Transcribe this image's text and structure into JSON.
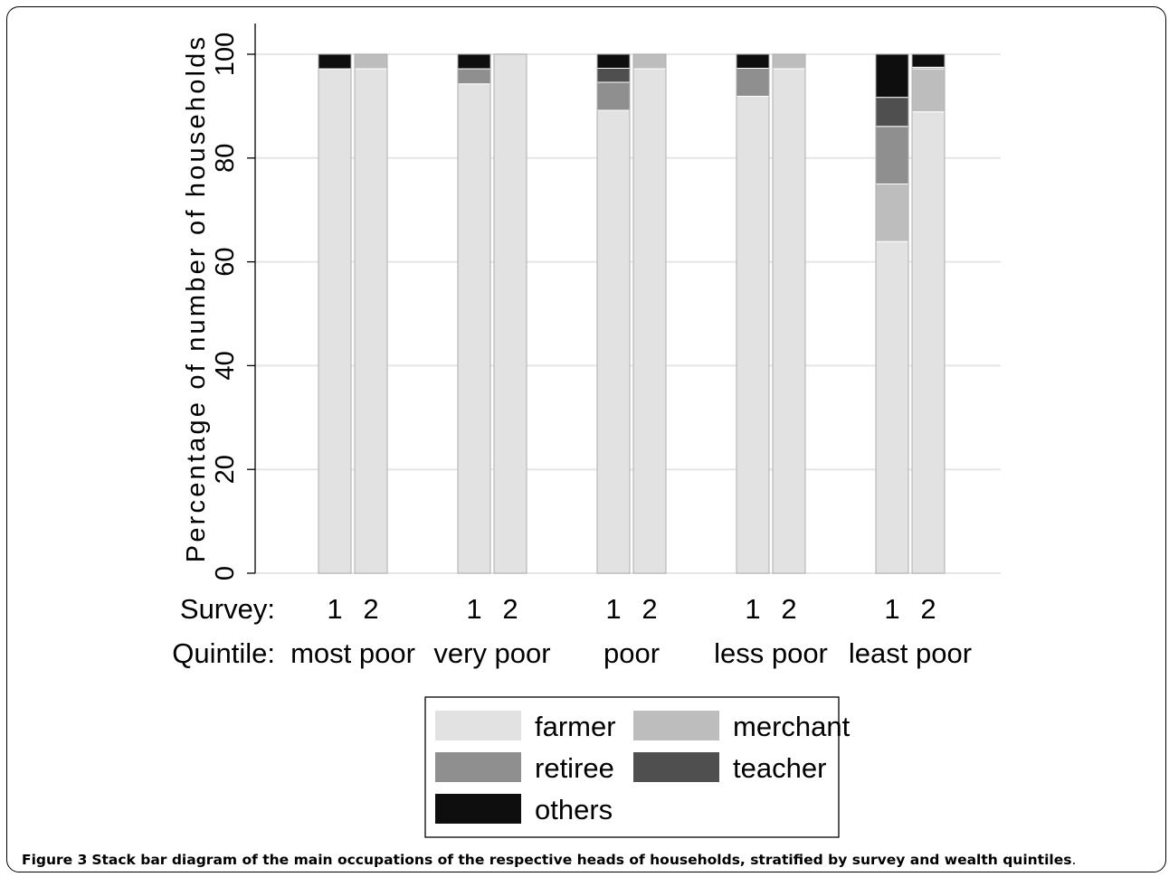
{
  "chart_data": {
    "type": "bar",
    "stacked": true,
    "ylabel": "Percentage of number of households",
    "ylim": [
      0,
      100
    ],
    "yticks": [
      0,
      20,
      40,
      60,
      80,
      100
    ],
    "grid": true,
    "row_labels": {
      "survey": "Survey:",
      "quintile": "Quintile:"
    },
    "groups": [
      {
        "quintile": "most poor",
        "bars": [
          {
            "survey": "1",
            "values": {
              "farmer": 97.2,
              "merchant": 0,
              "retiree": 0,
              "teacher": 0,
              "others": 2.8
            }
          },
          {
            "survey": "2",
            "values": {
              "farmer": 97.2,
              "merchant": 2.8,
              "retiree": 0,
              "teacher": 0,
              "others": 0
            }
          }
        ]
      },
      {
        "quintile": "very poor",
        "bars": [
          {
            "survey": "1",
            "values": {
              "farmer": 94.3,
              "merchant": 0,
              "retiree": 2.9,
              "teacher": 0,
              "others": 2.8
            }
          },
          {
            "survey": "2",
            "values": {
              "farmer": 100,
              "merchant": 0,
              "retiree": 0,
              "teacher": 0,
              "others": 0
            }
          }
        ]
      },
      {
        "quintile": "poor",
        "bars": [
          {
            "survey": "1",
            "values": {
              "farmer": 89.2,
              "merchant": 0,
              "retiree": 5.4,
              "teacher": 2.7,
              "others": 2.7
            }
          },
          {
            "survey": "2",
            "values": {
              "farmer": 97.2,
              "merchant": 2.8,
              "retiree": 0,
              "teacher": 0,
              "others": 0
            }
          }
        ]
      },
      {
        "quintile": "less poor",
        "bars": [
          {
            "survey": "1",
            "values": {
              "farmer": 91.9,
              "merchant": 0,
              "retiree": 5.4,
              "teacher": 0,
              "others": 2.7
            }
          },
          {
            "survey": "2",
            "values": {
              "farmer": 97.2,
              "merchant": 2.8,
              "retiree": 0,
              "teacher": 0,
              "others": 0
            }
          }
        ]
      },
      {
        "quintile": "least poor",
        "bars": [
          {
            "survey": "1",
            "values": {
              "farmer": 63.9,
              "merchant": 11.1,
              "retiree": 11.1,
              "teacher": 5.6,
              "others": 8.3
            }
          },
          {
            "survey": "2",
            "values": {
              "farmer": 88.9,
              "merchant": 8.3,
              "retiree": 0.3,
              "teacher": 0,
              "others": 2.5
            }
          }
        ]
      }
    ],
    "legend": {
      "position": "bottom",
      "entries": [
        {
          "key": "farmer",
          "label": "farmer",
          "color": "#e2e2e2"
        },
        {
          "key": "merchant",
          "label": "merchant",
          "color": "#bdbdbd"
        },
        {
          "key": "retiree",
          "label": "retiree",
          "color": "#8f8f8f"
        },
        {
          "key": "teacher",
          "label": "teacher",
          "color": "#4f4f4f"
        },
        {
          "key": "others",
          "label": "others",
          "color": "#0e0e0e"
        }
      ]
    }
  },
  "caption": {
    "label": "Figure 3",
    "text": "Stack bar diagram of the main occupations of the respective heads of households, stratified by survey and wealth quintiles",
    "end": "."
  }
}
